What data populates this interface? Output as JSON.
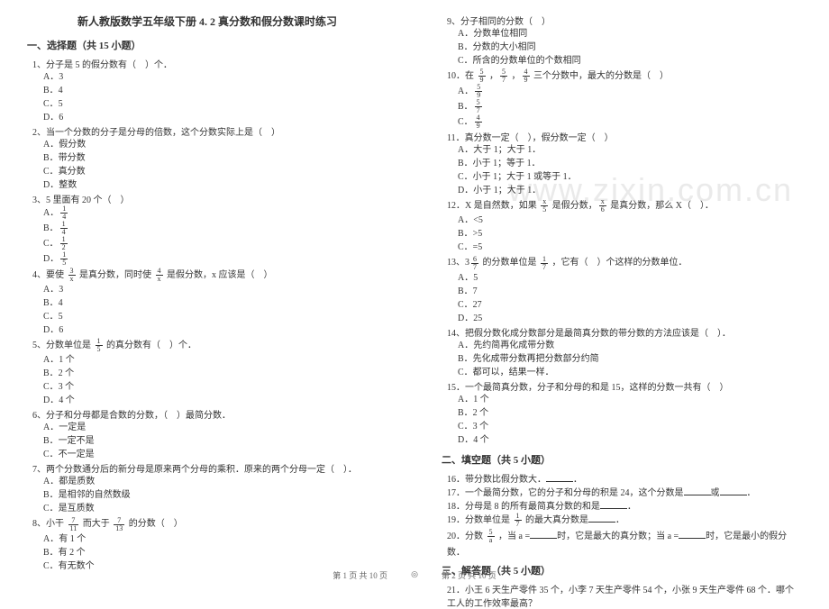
{
  "watermark": "www.zixin.com.cn",
  "title": "新人教版数学五年级下册 4. 2 真分数和假分数课时练习",
  "section1": "一、选择题（共 15 小题）",
  "section2": "二、填空题（共 5 小题）",
  "section3": "三、解答题（共 5 小题）",
  "q1": "1、分子是 5 的假分数有（　）个．",
  "q1a": "A．3",
  "q1b": "B．4",
  "q1c": "C．5",
  "q1d": "D．6",
  "q2": "2、当一个分数的分子是分母的倍数，这个分数实际上是（　）",
  "q2a": "A．假分数",
  "q2b": "B．带分数",
  "q2c": "C．真分数",
  "q2d": "D．整数",
  "q3": "3、5 里面有 20 个（　）",
  "q4t": "4、要使 ",
  "q4t2": " 是真分数，同时使 ",
  "q4t3": " 是假分数，x 应该是（　）",
  "q4a": "A．3",
  "q4b": "B．4",
  "q4c": "C．5",
  "q4d": "D．6",
  "q5t": "5、分数单位是 ",
  "q5t2": " 的真分数有（　）个．",
  "q5a": "A．1 个",
  "q5b": "B．2 个",
  "q5c": "C．3 个",
  "q5d": "D．4 个",
  "q6": "6、分子和分母都是合数的分数，（　）最简分数．",
  "q6a": "A．一定是",
  "q6b": "B．一定不是",
  "q6c": "C．不一定是",
  "q7": "7、两个分数通分后的新分母是原来两个分母的乘积．原来的两个分母一定（　）．",
  "q7a": "A．都是质数",
  "q7b": "B．是相邻的自然数级",
  "q7c": "C．是互质数",
  "q8t": "8、小干 ",
  "q8t2": " 而大于 ",
  "q8t3": " 的分数（　）",
  "q8a": "A．有 1 个",
  "q8b": "B．有 2 个",
  "q8c": "C．有无数个",
  "q9": "9、分子相同的分数（　）",
  "q9a": "A．分数单位相同",
  "q9b": "B．分数的大小相同",
  "q9c": "C．所含的分数单位的个数相同",
  "q10t": "10．在 ",
  "q10t2": " ，",
  "q10t3": " ，",
  "q10t4": " 三个分数中，最大的分数是（　）",
  "q11": "11．真分数一定（　），假分数一定（　）",
  "q11a": "A．大于 1；大于 1．",
  "q11b": "B．小于 1；等于 1．",
  "q11c": "C．小于 1；大于 1 或等于 1．",
  "q11d": "D．小于 1；大于 1．",
  "q12t": "12．X 是自然数，如果 ",
  "q12t2": " 是假分数，",
  "q12t3": " 是真分数，那么 X（　）．",
  "q12a": "A．<5",
  "q12b": "B．>5",
  "q12c": "C．=5",
  "q13t": "13、3",
  "q13t2": " 的分数单位是 ",
  "q13t3": " ，它有（　）个这样的分数单位．",
  "q13a": "A．5",
  "q13b": "B．7",
  "q13c": "C．27",
  "q13d": "D．25",
  "q14": "14、把假分数化成分数部分是最简真分数的带分数的方法应该是（　）．",
  "q14a": "A．先约简再化成带分数",
  "q14b": "B．先化成带分数再把分数部分约简",
  "q14c": "C．都可以，结果一样．",
  "q15": "15．一个最简真分数，分子和分母的和是 15，这样的分数一共有（　）",
  "q15a": "A．1 个",
  "q15b": "B．2 个",
  "q15c": "C．3 个",
  "q15d": "D．4 个",
  "q16": "16．带分数比假分数大．",
  "q17": "17．一个最简分数，它的分子和分母的积是 24，这个分数是",
  "q17b": "或",
  "q18": "18．分母是 8 的所有最简真分数的和是",
  "q19t": "19．分数单位是 ",
  "q19t2": " 的最大真分数是",
  "q20t": "20．分数 ",
  "q20t2": " ，当 a =",
  "q20t3": "时，它是最大的真分数；当 a =",
  "q20t4": "时，它是最小的假分数．",
  "q21": "21．小王 6 天生产零件 35 个，小李 7 天生产零件 54 个，小张 9 天生产零件 68 个．哪个工人的工作效率最高？",
  "footer1": "第 1 页  共 10 页",
  "footer2": "第 2 页  共 10 页",
  "divider": "◎"
}
